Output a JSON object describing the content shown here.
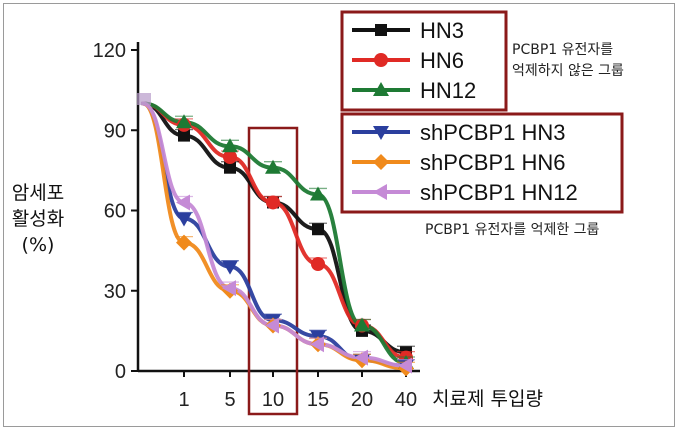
{
  "chart_data": {
    "type": "line",
    "title": "",
    "ylabel_lines": [
      "암세포",
      "활성화",
      "(%)"
    ],
    "xlabel": "치료제 투입량",
    "x_categories": [
      "",
      "1",
      "5",
      "10",
      "15",
      "20",
      "40"
    ],
    "yticks": [
      "0",
      "30",
      "60",
      "90",
      "120"
    ],
    "ylim": [
      0,
      120
    ],
    "highlight_category": "10",
    "series": [
      {
        "name": "HN3",
        "color": "#111111",
        "marker": "square",
        "values": [
          100,
          88,
          76,
          63,
          53,
          15,
          7
        ]
      },
      {
        "name": "HN6",
        "color": "#e02a25",
        "marker": "circle",
        "values": [
          100,
          92,
          80,
          63,
          40,
          17,
          5
        ]
      },
      {
        "name": "HN12",
        "color": "#1e7a34",
        "marker": "triangle-up",
        "values": [
          100,
          93,
          84,
          76,
          66,
          17,
          3
        ]
      },
      {
        "name": "shPCBP1 HN3",
        "color": "#2b3f9e",
        "marker": "triangle-down",
        "values": [
          100,
          57,
          39,
          19,
          13,
          4,
          2
        ]
      },
      {
        "name": "shPCBP1 HN6",
        "color": "#f08a1c",
        "marker": "diamond",
        "values": [
          100,
          48,
          30,
          17,
          10,
          4,
          1
        ]
      },
      {
        "name": "shPCBP1 HN12",
        "color": "#c58ad6",
        "marker": "triangle-left",
        "values": [
          100,
          63,
          31,
          17,
          10,
          5,
          2
        ]
      }
    ],
    "legend_groups": [
      {
        "note": [
          "PCBP1 유전자를",
          "억제하지 않은 그룹"
        ],
        "series_index": [
          0,
          1,
          2
        ]
      },
      {
        "note": [
          "PCBP1 유전자를 억제한 그룹"
        ],
        "series_index": [
          3,
          4,
          5
        ]
      }
    ]
  }
}
